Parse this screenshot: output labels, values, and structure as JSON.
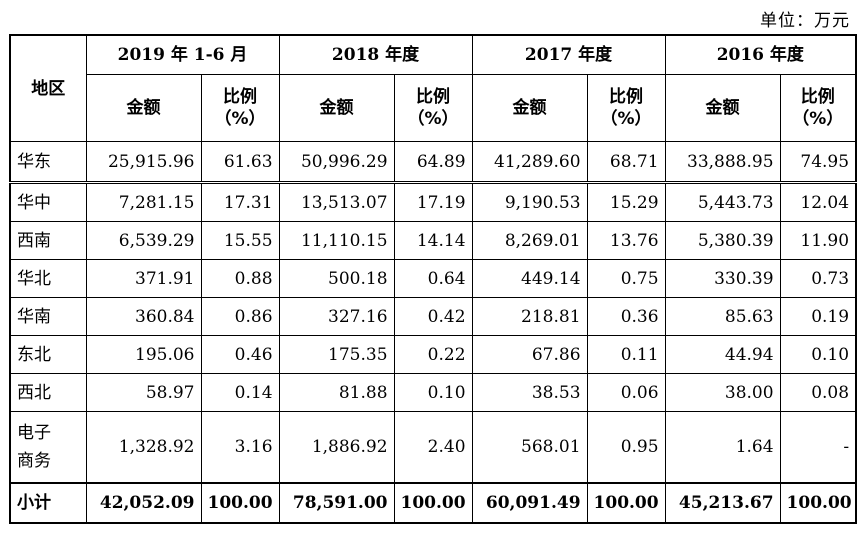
{
  "unit": "单位：万元",
  "header": {
    "region": "地区",
    "years": [
      "2019 年 1-6 月",
      "2018 年度",
      "2017 年度",
      "2016 年度"
    ],
    "amount": "金额",
    "ratio_line1": "比例",
    "ratio_line2": "（%）"
  },
  "rows": [
    {
      "region": "华东",
      "values": [
        "25,915.96",
        "61.63",
        "50,996.29",
        "64.89",
        "41,289.60",
        "68.71",
        "33,888.95",
        "74.95"
      ]
    },
    {
      "region": "华中",
      "values": [
        "7,281.15",
        "17.31",
        "13,513.07",
        "17.19",
        "9,190.53",
        "15.29",
        "5,443.73",
        "12.04"
      ]
    },
    {
      "region": "西南",
      "values": [
        "6,539.29",
        "15.55",
        "11,110.15",
        "14.14",
        "8,269.01",
        "13.76",
        "5,380.39",
        "11.90"
      ]
    },
    {
      "region": "华北",
      "values": [
        "371.91",
        "0.88",
        "500.18",
        "0.64",
        "449.14",
        "0.75",
        "330.39",
        "0.73"
      ]
    },
    {
      "region": "华南",
      "values": [
        "360.84",
        "0.86",
        "327.16",
        "0.42",
        "218.81",
        "0.36",
        "85.63",
        "0.19"
      ]
    },
    {
      "region": "东北",
      "values": [
        "195.06",
        "0.46",
        "175.35",
        "0.22",
        "67.86",
        "0.11",
        "44.94",
        "0.10"
      ]
    },
    {
      "region": "西北",
      "values": [
        "58.97",
        "0.14",
        "81.88",
        "0.10",
        "38.53",
        "0.06",
        "38.00",
        "0.08"
      ]
    },
    {
      "region_line1": "电子",
      "region_line2": "商务",
      "values": [
        "1,328.92",
        "3.16",
        "1,886.92",
        "2.40",
        "568.01",
        "0.95",
        "1.64",
        "-"
      ]
    }
  ],
  "total": {
    "region": "小计",
    "values": [
      "42,052.09",
      "100.00",
      "78,591.00",
      "100.00",
      "60,091.49",
      "100.00",
      "45,213.67",
      "100.00"
    ]
  }
}
